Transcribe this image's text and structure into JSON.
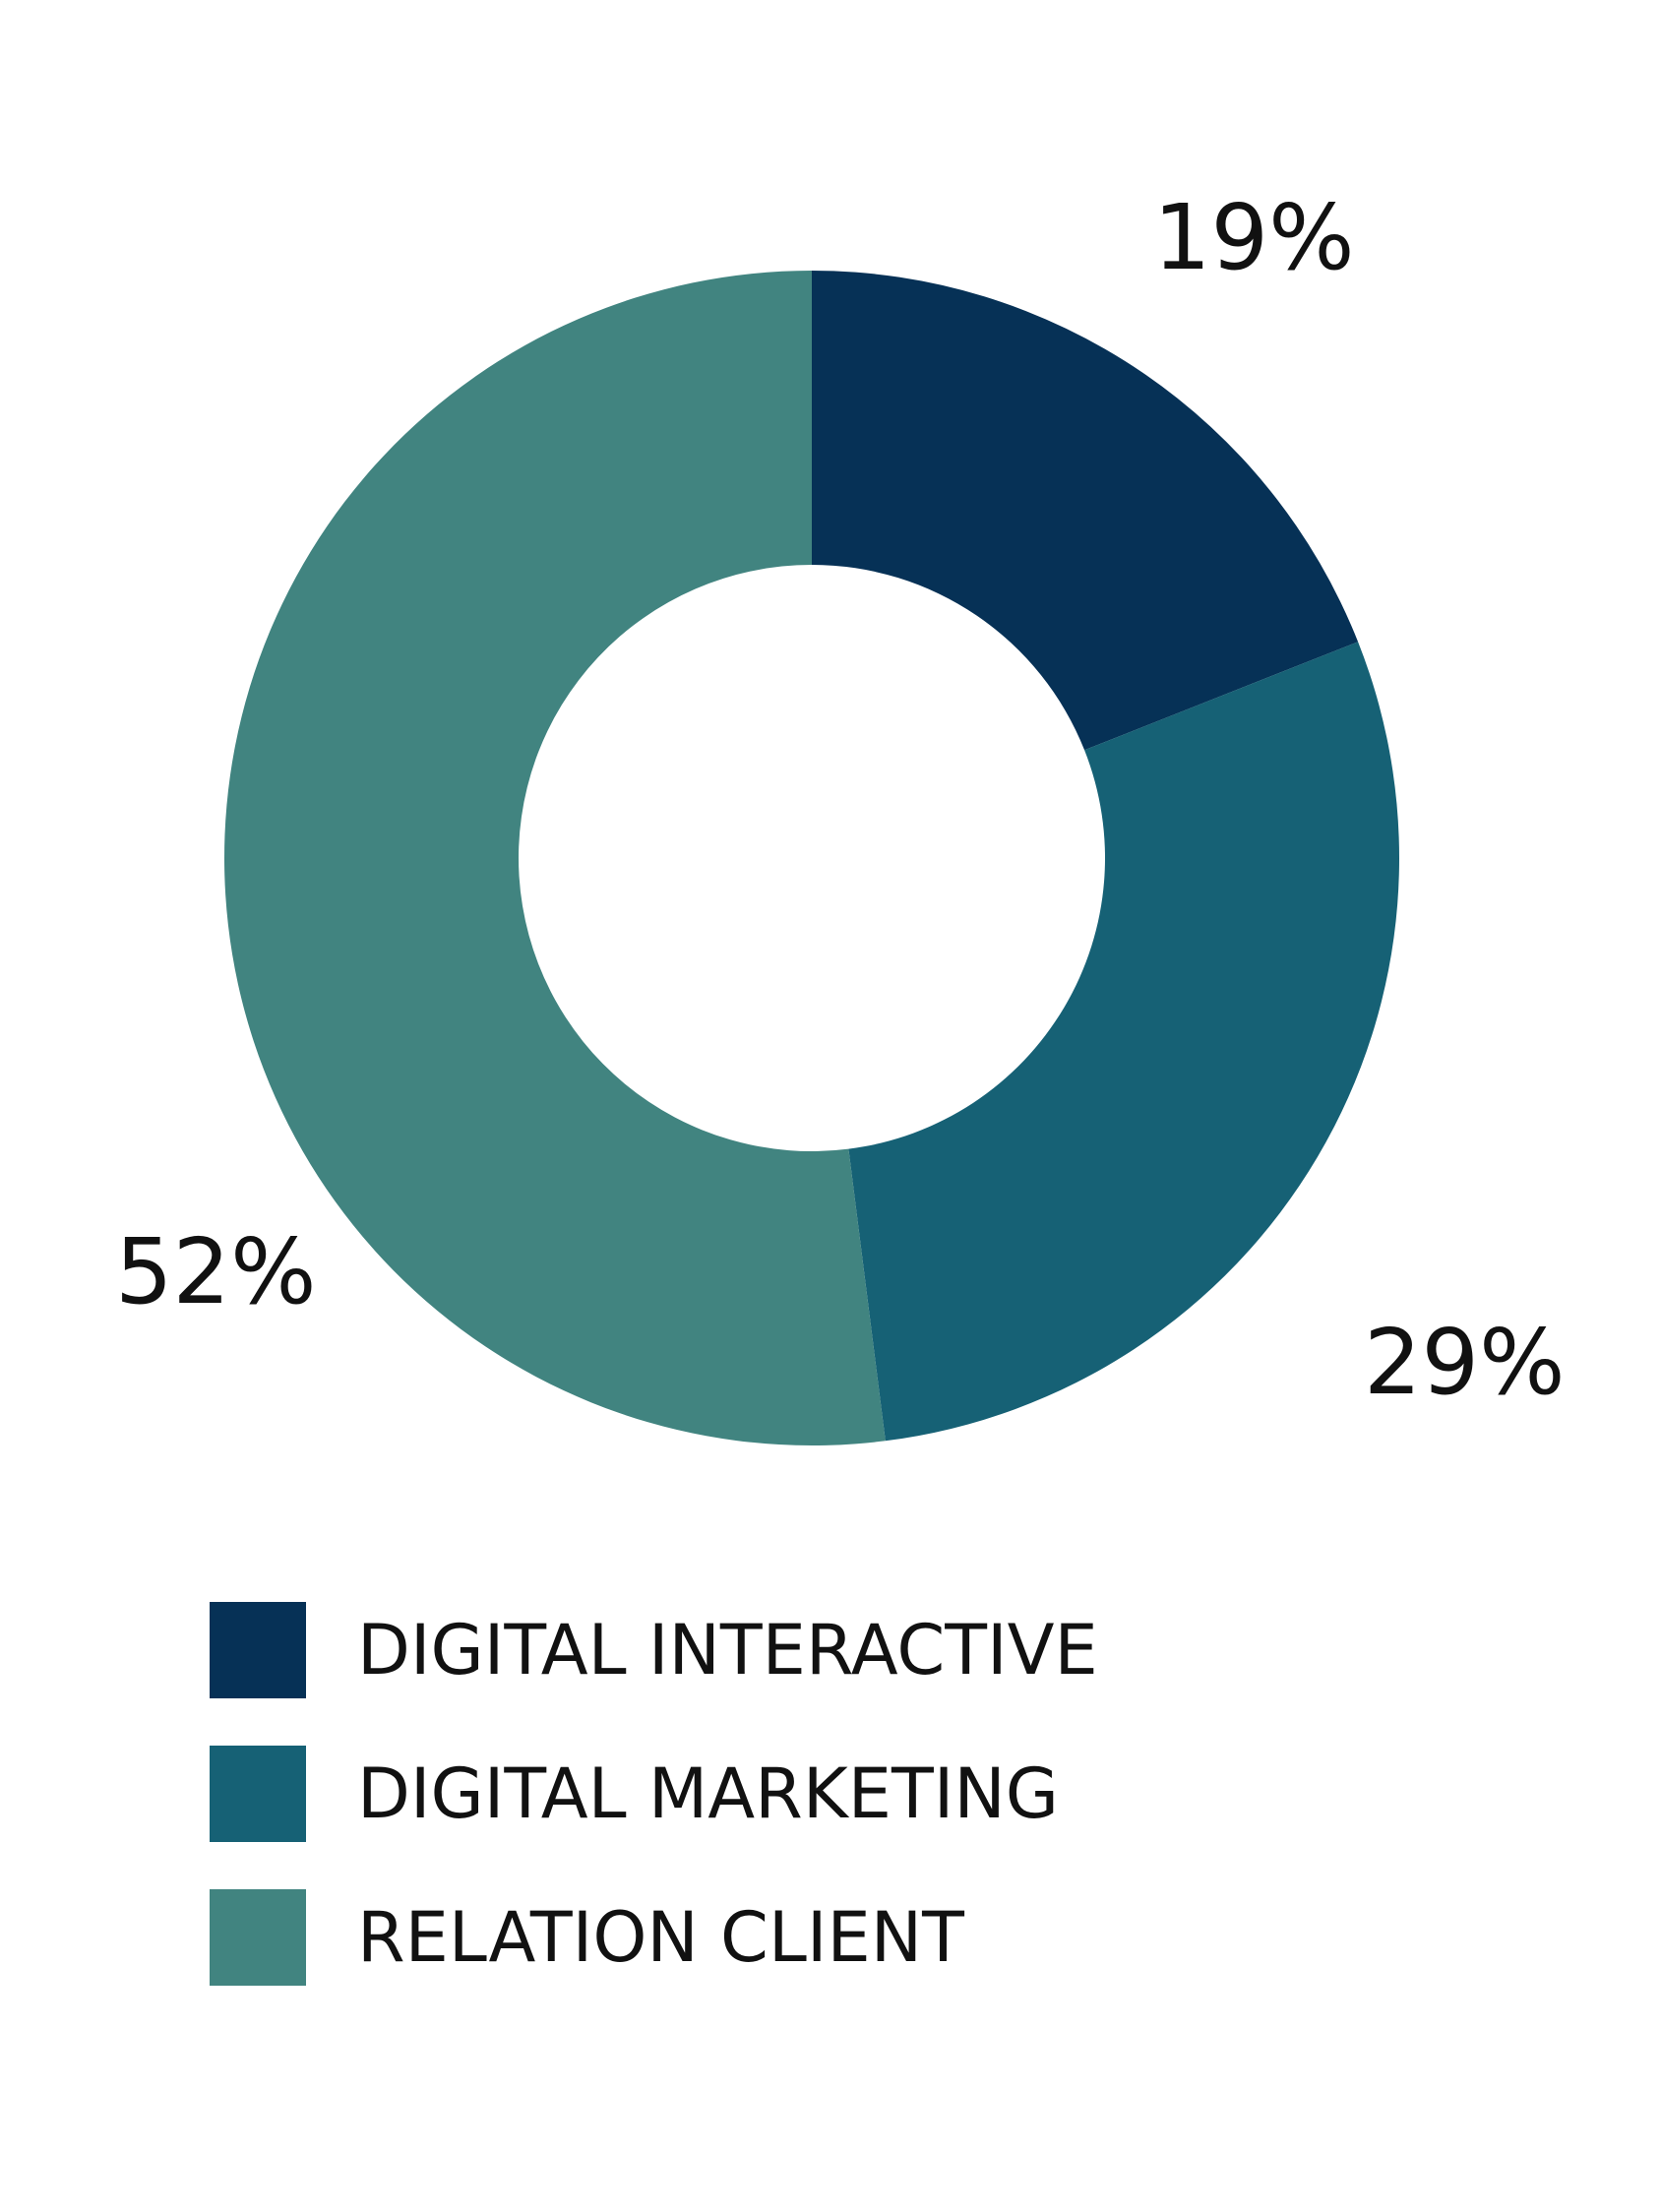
{
  "chart_data": {
    "type": "pie",
    "variant": "donut",
    "categories": [
      "DIGITAL INTERACTIVE",
      "DIGITAL MARKETING",
      "RELATION CLIENT"
    ],
    "values": [
      19,
      29,
      52
    ],
    "labels": [
      "19%",
      "29%",
      "52%"
    ],
    "colors": [
      "#063156",
      "#166175",
      "#418480"
    ],
    "legend": {
      "position": "bottom",
      "items": [
        {
          "label": "DIGITAL INTERACTIVE",
          "color": "#063156"
        },
        {
          "label": "DIGITAL MARKETING",
          "color": "#166175"
        },
        {
          "label": "RELATION CLIENT",
          "color": "#418480"
        }
      ]
    },
    "title": "",
    "xlabel": "",
    "ylabel": ""
  }
}
